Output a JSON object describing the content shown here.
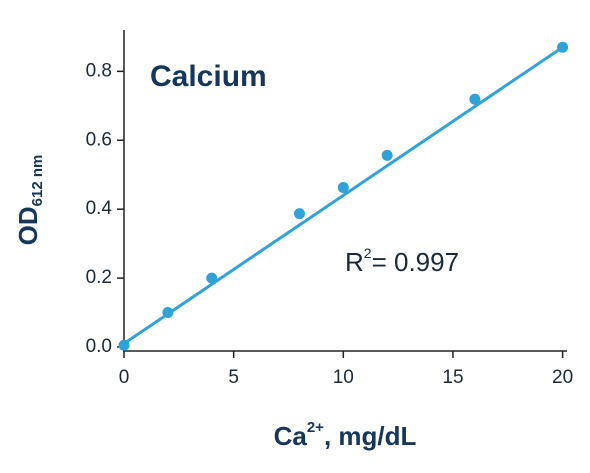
{
  "chart_data": {
    "type": "scatter",
    "title": "Calcium",
    "x_label": {
      "main": "Ca",
      "sup": "2+",
      "rest": ", mg/dL"
    },
    "y_label": {
      "main": "OD",
      "sub": "612 nm"
    },
    "annotation": {
      "main": "R",
      "sup": "2",
      "rest": "= 0.997"
    },
    "x": [
      0,
      2,
      4,
      8,
      10,
      12,
      16,
      20
    ],
    "values": [
      0.005,
      0.1,
      0.2,
      0.387,
      0.463,
      0.556,
      0.719,
      0.87
    ],
    "fit": {
      "x": [
        0,
        20
      ],
      "values": [
        0.01,
        0.87
      ]
    },
    "color": "#2fa3d8",
    "xlim": [
      0,
      20.2
    ],
    "xticks": [
      0,
      5,
      10,
      15,
      20
    ],
    "ylim": [
      0,
      0.92
    ],
    "yticks": [
      {
        "value": 0,
        "label": "0.0"
      },
      0.2,
      0.4,
      0.6,
      0.8
    ]
  }
}
